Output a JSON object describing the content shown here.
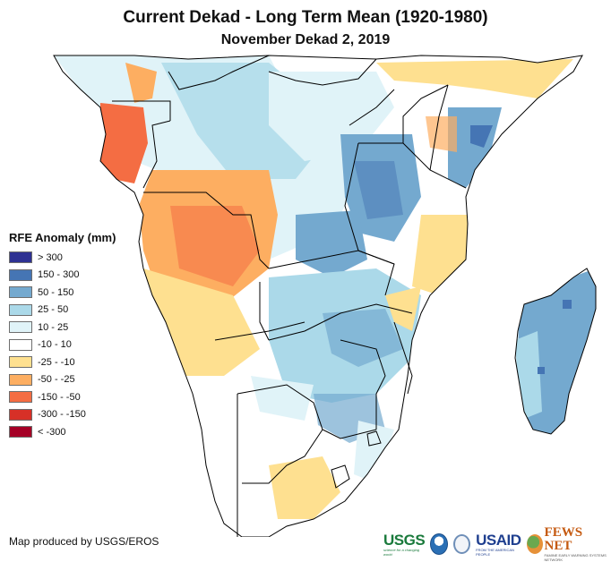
{
  "header": {
    "title": "Current Dekad - Long Term Mean (1920-1980)",
    "subtitle": "November Dekad 2, 2019"
  },
  "legend": {
    "title": "RFE Anomaly (mm)",
    "items": [
      {
        "label": "> 300",
        "color": "#2e3192"
      },
      {
        "label": "150 - 300",
        "color": "#4575b4"
      },
      {
        "label": "50 - 150",
        "color": "#74a9cf"
      },
      {
        "label": "25 - 50",
        "color": "#abd9e9"
      },
      {
        "label": "10 - 25",
        "color": "#e0f3f8"
      },
      {
        "label": "-10 - 10",
        "color": "#ffffff"
      },
      {
        "label": "-25 - -10",
        "color": "#fee090"
      },
      {
        "label": "-50 - -25",
        "color": "#fdae61"
      },
      {
        "label": "-150 - -50",
        "color": "#f46d43"
      },
      {
        "label": "-300 - -150",
        "color": "#d73027"
      },
      {
        "label": "< -300",
        "color": "#a50026"
      }
    ]
  },
  "map": {
    "region": "Central, East and Southern Africa with Madagascar",
    "border_color": "#000000"
  },
  "footer": {
    "credit": "Map produced by USGS/EROS",
    "logos": {
      "usgs": "USGS",
      "usgs_tagline": "science for a changing world",
      "usaid": "USAID",
      "usaid_tagline": "FROM THE AMERICAN PEOPLE",
      "fews": "FEWS NET",
      "fews_tagline": "FAMINE EARLY WARNING SYSTEMS NETWORK"
    }
  }
}
